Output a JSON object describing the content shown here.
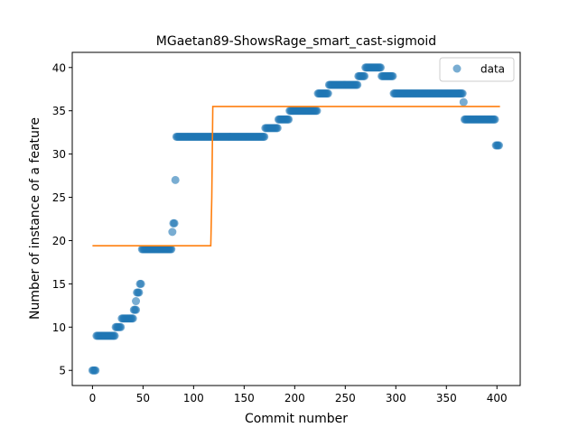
{
  "chart_data": {
    "type": "scatter",
    "title": "MGaetan89-ShowsRage_smart_cast-sigmoid",
    "xlabel": "Commit number",
    "ylabel": "Number of instance of a feature",
    "xlim": [
      -20,
      423
    ],
    "ylim": [
      3.25,
      41.75
    ],
    "xticks": [
      0,
      50,
      100,
      150,
      200,
      250,
      300,
      350,
      400
    ],
    "yticks": [
      5,
      10,
      15,
      20,
      25,
      30,
      35,
      40
    ],
    "grid": false,
    "legend": {
      "placement": "top-right",
      "entries": [
        "data"
      ]
    },
    "colors": {
      "data": "#1f77b4",
      "fit": "#ff7f0e"
    },
    "series": [
      {
        "name": "data",
        "kind": "scatter",
        "segments": [
          {
            "x_start": 0,
            "x_end": 3,
            "y": 5
          },
          {
            "x_start": 4,
            "x_end": 22,
            "y": 9
          },
          {
            "x_start": 23,
            "x_end": 28,
            "y": 10
          },
          {
            "x_start": 29,
            "x_end": 40,
            "y": 11
          },
          {
            "x_start": 41,
            "x_end": 43,
            "y": 12
          },
          {
            "x_start": 43,
            "x_end": 43,
            "y": 13
          },
          {
            "x_start": 44,
            "x_end": 46,
            "y": 14
          },
          {
            "x_start": 47,
            "x_end": 48,
            "y": 15
          },
          {
            "x_start": 49,
            "x_end": 78,
            "y": 19
          },
          {
            "x_start": 79,
            "x_end": 79,
            "y": 21
          },
          {
            "x_start": 80,
            "x_end": 81,
            "y": 22
          },
          {
            "x_start": 82,
            "x_end": 82,
            "y": 27
          },
          {
            "x_start": 83,
            "x_end": 170,
            "y": 32
          },
          {
            "x_start": 171,
            "x_end": 183,
            "y": 33
          },
          {
            "x_start": 184,
            "x_end": 194,
            "y": 34
          },
          {
            "x_start": 195,
            "x_end": 222,
            "y": 35
          },
          {
            "x_start": 223,
            "x_end": 233,
            "y": 37
          },
          {
            "x_start": 234,
            "x_end": 262,
            "y": 38
          },
          {
            "x_start": 263,
            "x_end": 269,
            "y": 39
          },
          {
            "x_start": 270,
            "x_end": 285,
            "y": 40
          },
          {
            "x_start": 286,
            "x_end": 297,
            "y": 39
          },
          {
            "x_start": 298,
            "x_end": 366,
            "y": 37
          },
          {
            "x_start": 367,
            "x_end": 367,
            "y": 36
          },
          {
            "x_start": 368,
            "x_end": 398,
            "y": 34
          },
          {
            "x_start": 399,
            "x_end": 402,
            "y": 31
          }
        ]
      },
      {
        "name": "fit",
        "kind": "line",
        "points": [
          [
            0,
            19.4
          ],
          [
            117,
            19.4
          ],
          [
            118,
            25
          ],
          [
            119,
            35.5
          ],
          [
            403,
            35.5
          ]
        ]
      }
    ]
  }
}
